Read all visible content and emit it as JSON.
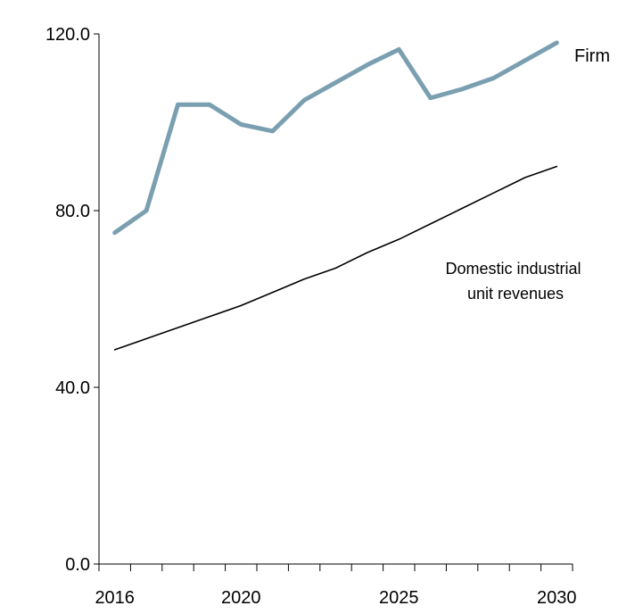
{
  "chart_data": {
    "type": "line",
    "title": "",
    "xlabel": "",
    "ylabel": "",
    "x": [
      2016,
      2017,
      2018,
      2019,
      2020,
      2021,
      2022,
      2023,
      2024,
      2025,
      2026,
      2027,
      2028,
      2029,
      2030
    ],
    "xlim": [
      2015.5,
      2030.5
    ],
    "ylim": [
      0,
      120
    ],
    "x_ticks": [
      2016,
      2020,
      2025,
      2030
    ],
    "y_ticks": [
      0,
      40,
      80,
      120
    ],
    "y_tick_labels": [
      "0.0",
      "40.0",
      "80.0",
      "120.0"
    ],
    "grid": false,
    "series": [
      {
        "name": "Firm",
        "color": "#7a9fb0",
        "values": [
          75.0,
          80.0,
          104.0,
          104.0,
          99.5,
          98.0,
          105.0,
          109.0,
          113.0,
          116.5,
          105.5,
          107.5,
          110.0,
          114.0,
          118.0
        ]
      },
      {
        "name": "Domestic industrial unit revenues",
        "name_lines": [
          "Domestic industrial",
          "unit revenues"
        ],
        "color": "#000000",
        "values": [
          48.5,
          51.0,
          53.5,
          56.0,
          58.5,
          61.5,
          64.5,
          67.0,
          70.5,
          73.5,
          77.0,
          80.5,
          84.0,
          87.5,
          90.0
        ]
      }
    ]
  }
}
